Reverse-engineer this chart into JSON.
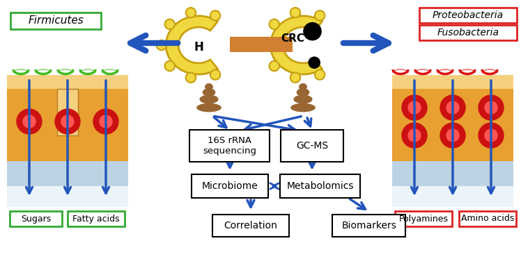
{
  "bg_color": "#ffffff",
  "green_box_color": "#33aa33",
  "red_box_color": "#dd2222",
  "blue_color": "#2255bb",
  "firmicutes_label": "Firmicutes",
  "proteo_label": "Proteobacteria",
  "fuso_label": "Fusobacteria",
  "sugars_label": "Sugars",
  "fatty_acids_label": "Fatty acids",
  "polyamines_label": "Polyamines",
  "amino_acids_label": "Amino acids",
  "seq_label": "16S rRNA\nsequencing",
  "gcms_label": "GC-MS",
  "microbiome_label": "Microbiome",
  "metabolomics_label": "Metabolomics",
  "correlation_label": "Correlation",
  "biomarkers_label": "Biomarkers",
  "H_label": "H",
  "CRC_label": "CRC",
  "skin_orange": "#e8a030",
  "skin_light": "#f5d080",
  "skin_dark": "#b87820",
  "cell_red": "#cc1111",
  "mucus_blue": "#b0ccdd",
  "green_swirl": "#44bb22",
  "red_swirl": "#dd1111",
  "colon_yellow": "#f0d840",
  "colon_border": "#c8a010",
  "colon_shadow": "#d4b830",
  "poop_color": "#996633",
  "connector_orange": "#d08030",
  "black": "#000000",
  "white": "#ffffff"
}
